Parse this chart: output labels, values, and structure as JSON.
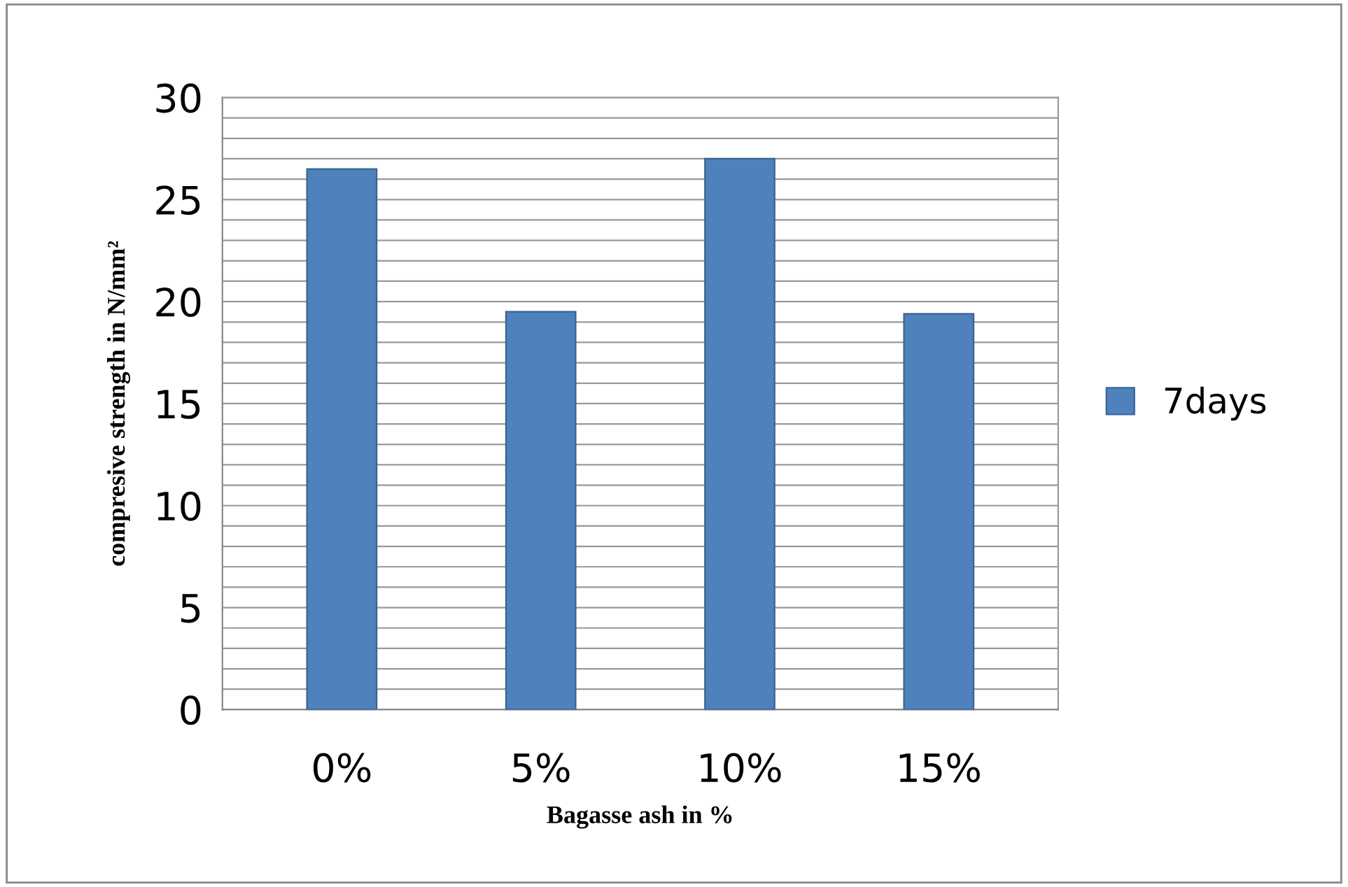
{
  "chart_data": {
    "type": "bar",
    "xlabel": "Bagasse ash in %",
    "ylabel": "compresive strength in N/mm²",
    "categories": [
      "0%",
      "5%",
      "10%",
      "15%"
    ],
    "series": [
      {
        "name": "7days",
        "color": "#4f81bd",
        "values": [
          26.5,
          19.5,
          27,
          19.4
        ]
      }
    ],
    "ylim": [
      0,
      30
    ],
    "yticks": [
      0,
      {
        "value": 1,
        "label": null
      },
      {
        "value": 2,
        "label": null
      },
      {
        "value": 3,
        "label": null
      },
      {
        "value": 4,
        "label": null
      },
      5,
      {
        "value": 6,
        "label": null
      },
      {
        "value": 7,
        "label": null
      },
      {
        "value": 8,
        "label": null
      },
      {
        "value": 9,
        "label": null
      },
      10,
      {
        "value": 11,
        "label": null
      },
      {
        "value": 12,
        "label": null
      },
      {
        "value": 13,
        "label": null
      },
      {
        "value": 14,
        "label": null
      },
      15,
      {
        "value": 16,
        "label": null
      },
      {
        "value": 17,
        "label": null
      },
      {
        "value": 18,
        "label": null
      },
      {
        "value": 19,
        "label": null
      },
      20,
      {
        "value": 21,
        "label": null
      },
      {
        "value": 22,
        "label": null
      },
      {
        "value": 23,
        "label": null
      },
      {
        "value": 24,
        "label": null
      },
      25,
      {
        "value": 26,
        "label": null
      },
      {
        "value": 27,
        "label": null
      },
      {
        "value": 28,
        "label": null
      },
      {
        "value": 29,
        "label": null
      },
      30
    ],
    "grid": "y",
    "legend": "right"
  }
}
